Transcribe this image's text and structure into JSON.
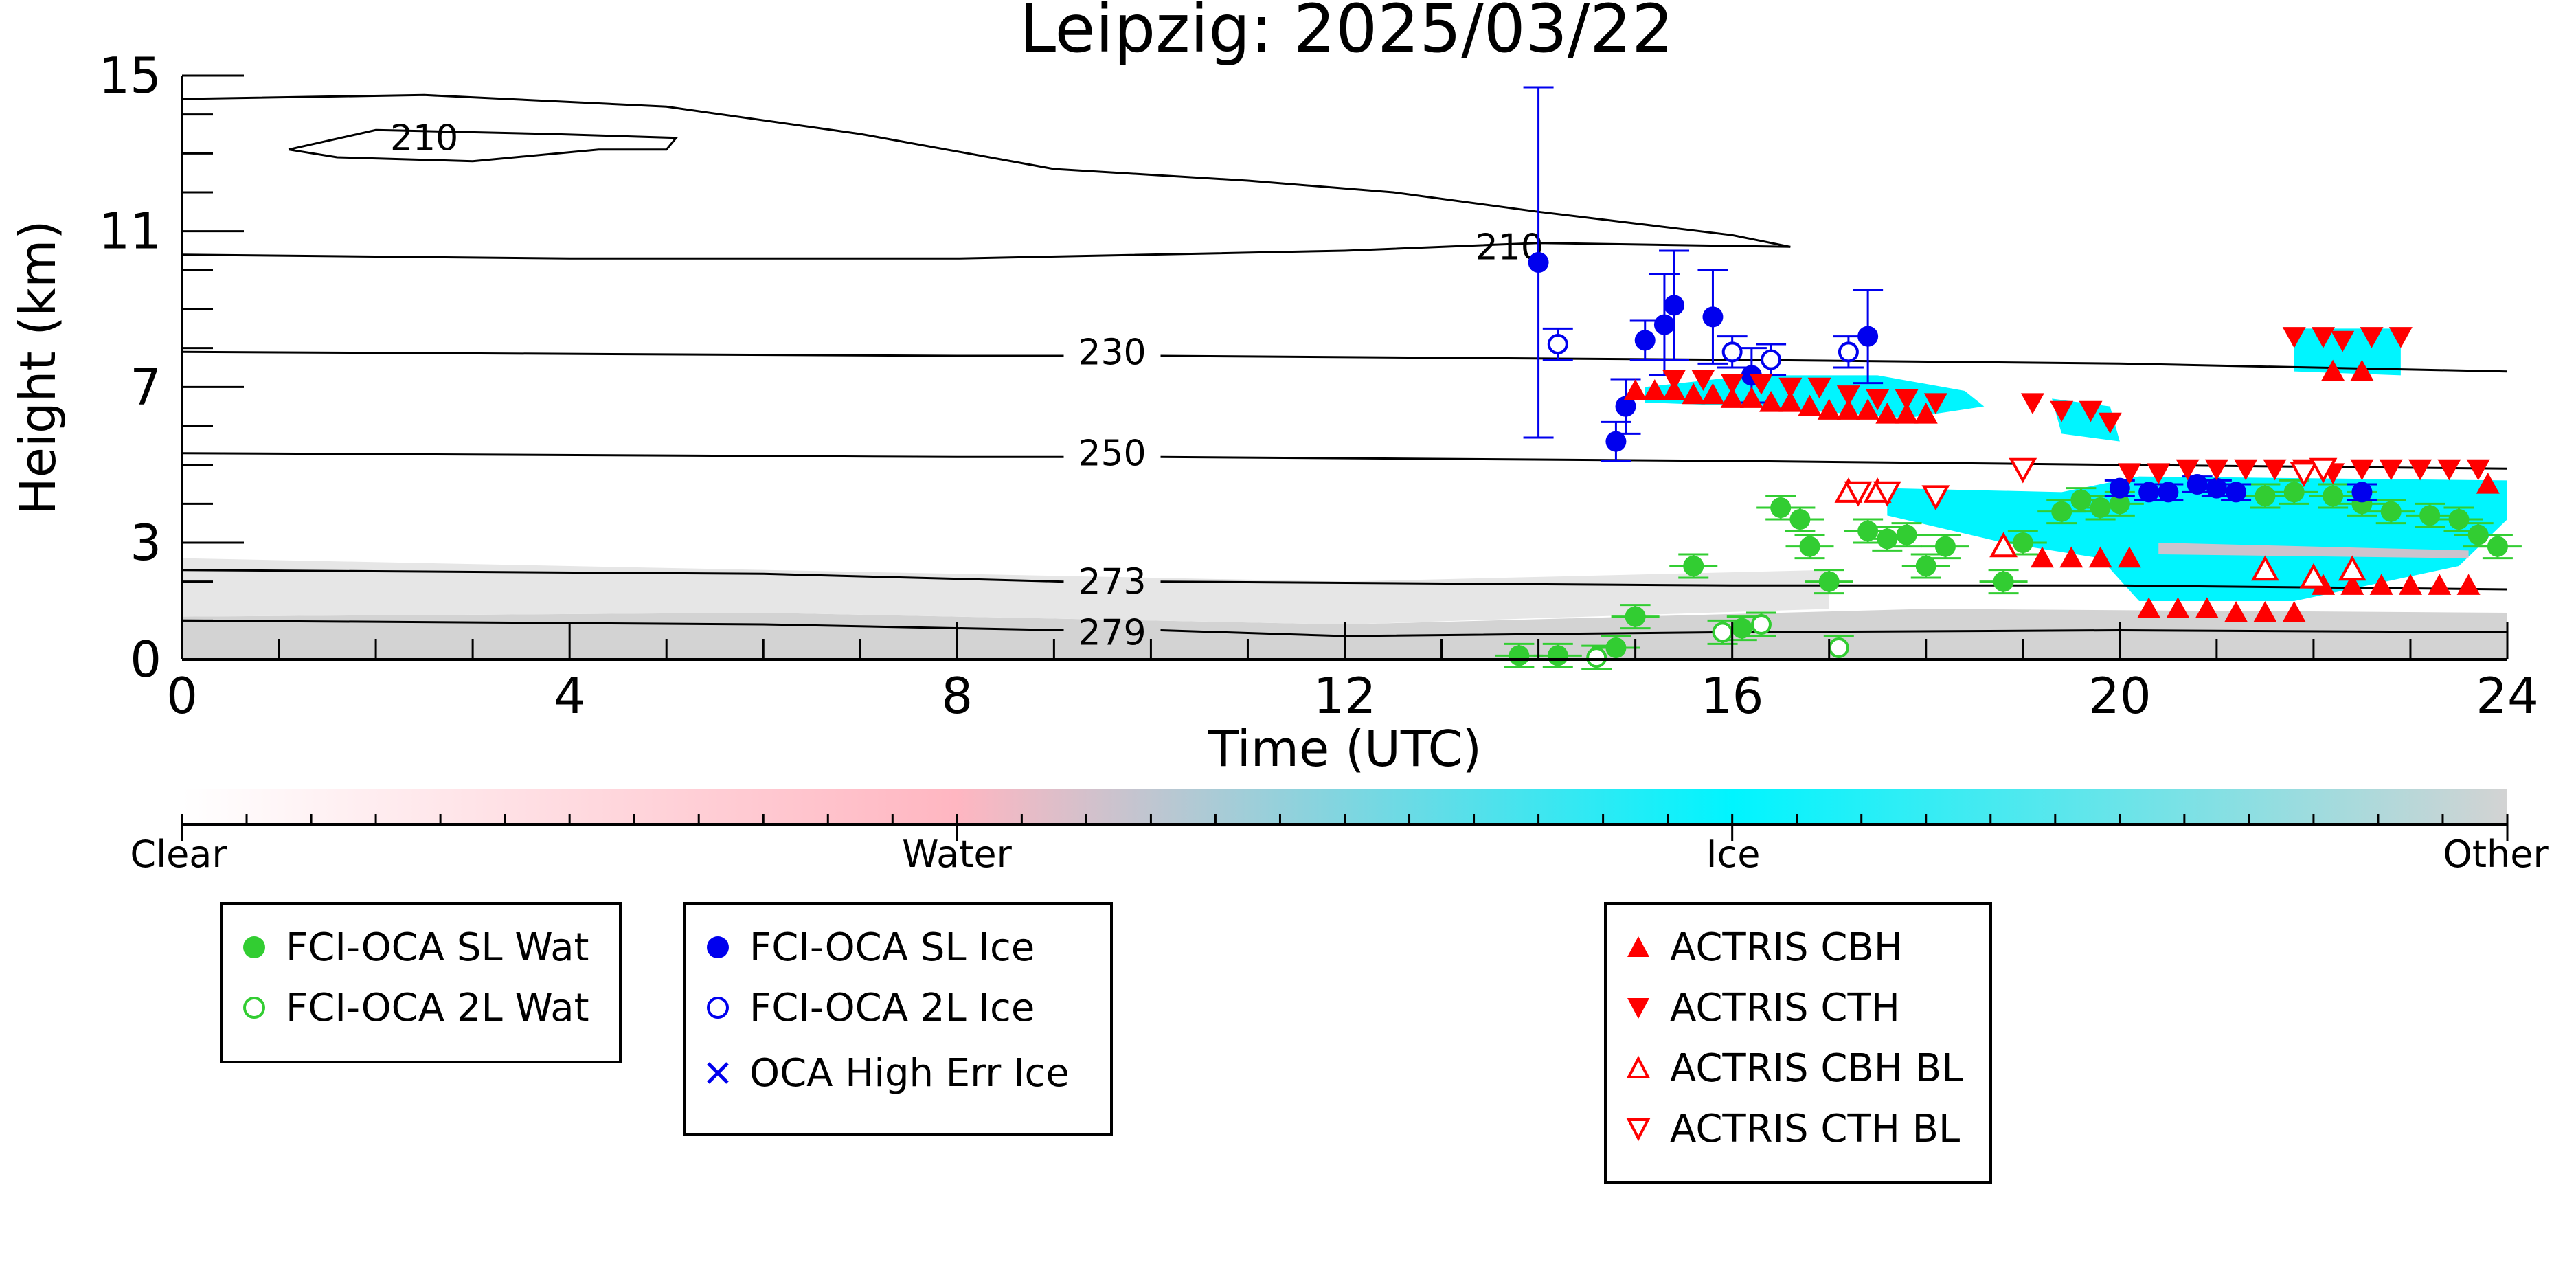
{
  "chart_data": {
    "type": "scatter",
    "title": "Leipzig: 2025/03/22",
    "xlabel": "Time (UTC)",
    "ylabel": "Height (km)",
    "xlim": [
      0,
      24
    ],
    "ylim": [
      0,
      15
    ],
    "x_ticks": [
      0,
      4,
      8,
      12,
      16,
      20,
      24
    ],
    "y_ticks": [
      0,
      3,
      7,
      11,
      15
    ],
    "grid": false,
    "contour_labels": [
      {
        "text": "210",
        "x": 2.5,
        "y": 13.4
      },
      {
        "text": "210",
        "x": 13.7,
        "y": 10.6
      },
      {
        "text": "230",
        "x": 9.6,
        "y": 7.9
      },
      {
        "text": "250",
        "x": 9.6,
        "y": 5.3
      },
      {
        "text": "273",
        "x": 9.6,
        "y": 2.0
      },
      {
        "text": "279",
        "x": 9.6,
        "y": 0.7
      }
    ],
    "colorbar": {
      "tick_labels": [
        "Clear",
        "Water",
        "Ice",
        "Other"
      ],
      "colors": [
        "#ffffff",
        "#ffb6c1",
        "#00f5ff",
        "#d3d3d3"
      ]
    },
    "series": [
      {
        "name": "FCI-OCA SL Wat",
        "color": "#32cd32",
        "marker": "filled-circle",
        "points": [
          [
            13.8,
            0.1
          ],
          [
            14.2,
            0.1
          ],
          [
            14.8,
            0.3
          ],
          [
            15.0,
            1.1
          ],
          [
            15.6,
            2.4
          ],
          [
            16.1,
            0.8
          ],
          [
            16.5,
            3.9
          ],
          [
            16.7,
            3.6
          ],
          [
            16.8,
            2.9
          ],
          [
            17.0,
            2.0
          ],
          [
            17.4,
            3.3
          ],
          [
            17.6,
            3.1
          ],
          [
            17.8,
            3.2
          ],
          [
            18.0,
            2.4
          ],
          [
            18.2,
            2.9
          ],
          [
            18.8,
            2.0
          ],
          [
            19.0,
            3.0
          ],
          [
            19.4,
            3.8
          ],
          [
            19.6,
            4.1
          ],
          [
            19.8,
            3.9
          ],
          [
            20.0,
            4.0
          ],
          [
            21.5,
            4.2
          ],
          [
            21.8,
            4.3
          ],
          [
            22.2,
            4.2
          ],
          [
            22.5,
            4.0
          ],
          [
            22.8,
            3.8
          ],
          [
            23.2,
            3.7
          ],
          [
            23.5,
            3.6
          ],
          [
            23.7,
            3.2
          ],
          [
            23.9,
            2.9
          ]
        ],
        "err": 0.3
      },
      {
        "name": "FCI-OCA 2L Wat",
        "color": "#32cd32",
        "marker": "open-circle",
        "points": [
          [
            14.6,
            0.05
          ],
          [
            15.9,
            0.7
          ],
          [
            16.3,
            0.9
          ],
          [
            17.1,
            0.3
          ]
        ],
        "err": 0.3
      },
      {
        "name": "FCI-OCA SL Ice",
        "color": "#0000ee",
        "marker": "filled-circle",
        "points": [
          [
            14.0,
            10.2,
            4.5
          ],
          [
            14.8,
            5.6,
            0.5
          ],
          [
            14.9,
            6.5,
            0.7
          ],
          [
            15.1,
            8.2,
            0.5
          ],
          [
            15.3,
            8.6,
            1.3
          ],
          [
            15.4,
            9.1,
            1.4
          ],
          [
            15.8,
            8.8,
            1.2
          ],
          [
            16.2,
            7.3,
            0.7
          ],
          [
            17.4,
            8.3,
            1.2
          ],
          [
            20.0,
            4.4,
            0.2
          ],
          [
            20.3,
            4.3,
            0.2
          ],
          [
            20.5,
            4.3,
            0.2
          ],
          [
            20.8,
            4.5,
            0.2
          ],
          [
            21.0,
            4.4,
            0.2
          ],
          [
            21.2,
            4.3,
            0.2
          ],
          [
            22.5,
            4.3,
            0.2
          ]
        ]
      },
      {
        "name": "FCI-OCA 2L Ice",
        "color": "#0000ee",
        "marker": "open-circle",
        "points": [
          [
            14.2,
            8.1
          ],
          [
            16.0,
            7.9
          ],
          [
            16.4,
            7.7
          ],
          [
            17.2,
            7.9
          ]
        ],
        "err": 0.4
      },
      {
        "name": "OCA High Err Ice",
        "color": "#0000ee",
        "marker": "x",
        "points": []
      },
      {
        "name": "ACTRIS CBH",
        "color": "#ff0000",
        "marker": "triangle-up",
        "points": [
          [
            15.0,
            6.9
          ],
          [
            15.2,
            6.9
          ],
          [
            15.4,
            6.9
          ],
          [
            15.6,
            6.8
          ],
          [
            15.8,
            6.8
          ],
          [
            16.0,
            6.7
          ],
          [
            16.2,
            6.7
          ],
          [
            16.4,
            6.6
          ],
          [
            16.6,
            6.6
          ],
          [
            16.8,
            6.5
          ],
          [
            17.0,
            6.4
          ],
          [
            17.2,
            6.4
          ],
          [
            17.4,
            6.4
          ],
          [
            17.6,
            6.3
          ],
          [
            17.8,
            6.3
          ],
          [
            18.0,
            6.3
          ],
          [
            19.2,
            2.6
          ],
          [
            19.5,
            2.6
          ],
          [
            19.8,
            2.6
          ],
          [
            20.1,
            2.6
          ],
          [
            20.3,
            1.3
          ],
          [
            20.6,
            1.3
          ],
          [
            20.9,
            1.3
          ],
          [
            21.2,
            1.2
          ],
          [
            21.5,
            1.2
          ],
          [
            21.8,
            1.2
          ],
          [
            22.1,
            1.9
          ],
          [
            22.4,
            1.9
          ],
          [
            22.7,
            1.9
          ],
          [
            23.0,
            1.9
          ],
          [
            23.3,
            1.9
          ],
          [
            23.6,
            1.9
          ],
          [
            23.8,
            4.5
          ],
          [
            22.2,
            7.4
          ],
          [
            22.5,
            7.4
          ]
        ]
      },
      {
        "name": "ACTRIS CTH",
        "color": "#ff0000",
        "marker": "triangle-down",
        "points": [
          [
            15.4,
            7.2
          ],
          [
            15.7,
            7.2
          ],
          [
            16.0,
            7.1
          ],
          [
            16.3,
            7.1
          ],
          [
            16.6,
            7.0
          ],
          [
            16.9,
            7.0
          ],
          [
            17.2,
            6.8
          ],
          [
            17.5,
            6.7
          ],
          [
            17.8,
            6.7
          ],
          [
            18.1,
            6.6
          ],
          [
            19.1,
            6.6
          ],
          [
            19.4,
            6.4
          ],
          [
            19.7,
            6.4
          ],
          [
            19.9,
            6.1
          ],
          [
            20.1,
            4.8
          ],
          [
            20.4,
            4.8
          ],
          [
            20.7,
            4.9
          ],
          [
            21.0,
            4.9
          ],
          [
            21.3,
            4.9
          ],
          [
            21.6,
            4.9
          ],
          [
            21.9,
            4.9
          ],
          [
            22.2,
            4.8
          ],
          [
            22.5,
            4.9
          ],
          [
            22.8,
            4.9
          ],
          [
            23.1,
            4.9
          ],
          [
            23.4,
            4.9
          ],
          [
            23.7,
            4.9
          ],
          [
            21.8,
            8.3
          ],
          [
            22.1,
            8.3
          ],
          [
            22.3,
            8.2
          ],
          [
            22.6,
            8.3
          ],
          [
            22.9,
            8.3
          ]
        ]
      },
      {
        "name": "ACTRIS CBH BL",
        "color": "#ff0000",
        "marker": "open-triangle-up",
        "points": [
          [
            17.2,
            4.3
          ],
          [
            17.5,
            4.3
          ],
          [
            18.8,
            2.9
          ],
          [
            21.5,
            2.3
          ],
          [
            22.0,
            2.1
          ],
          [
            22.4,
            2.3
          ]
        ]
      },
      {
        "name": "ACTRIS CTH BL",
        "color": "#ff0000",
        "marker": "open-triangle-down",
        "points": [
          [
            17.3,
            4.3
          ],
          [
            17.6,
            4.3
          ],
          [
            18.1,
            4.2
          ],
          [
            19.0,
            4.9
          ],
          [
            21.9,
            4.8
          ],
          [
            22.1,
            4.9
          ]
        ]
      }
    ],
    "legend": [
      {
        "label": "FCI-OCA SL Wat",
        "color": "#32cd32",
        "marker": "filled-circle"
      },
      {
        "label": "FCI-OCA 2L Wat",
        "color": "#32cd32",
        "marker": "open-circle"
      },
      {
        "label": "FCI-OCA SL Ice",
        "color": "#0000ee",
        "marker": "filled-circle"
      },
      {
        "label": "FCI-OCA 2L Ice",
        "color": "#0000ee",
        "marker": "open-circle"
      },
      {
        "label": "OCA High Err Ice",
        "color": "#0000ee",
        "marker": "x"
      },
      {
        "label": "ACTRIS CBH",
        "color": "#ff0000",
        "marker": "triangle-up"
      },
      {
        "label": "ACTRIS CTH",
        "color": "#ff0000",
        "marker": "triangle-down"
      },
      {
        "label": "ACTRIS CBH BL",
        "color": "#ff0000",
        "marker": "open-triangle-up"
      },
      {
        "label": "ACTRIS CTH BL",
        "color": "#ff0000",
        "marker": "open-triangle-down"
      }
    ]
  }
}
